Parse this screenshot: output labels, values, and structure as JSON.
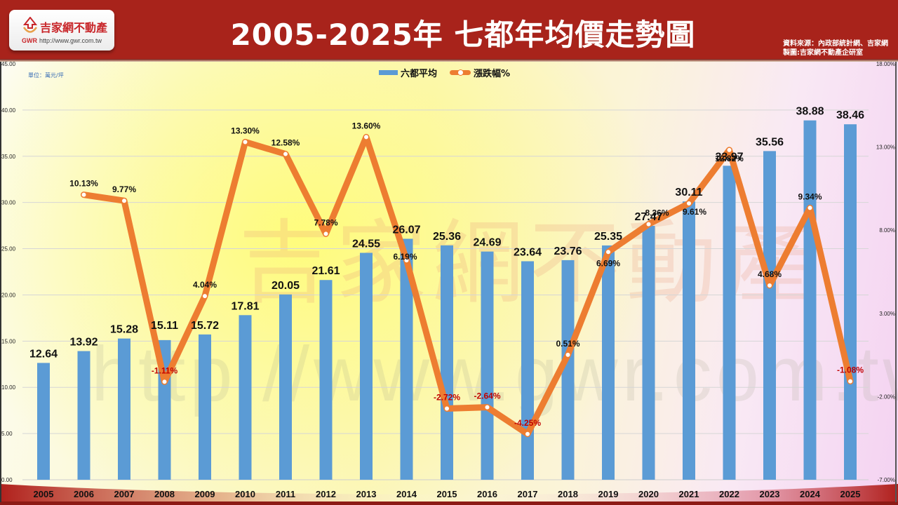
{
  "header": {
    "title": "2005-2025年 七都年均價走勢圖",
    "logo": {
      "name": "吉家網不動產",
      "abbr": "GWR",
      "url": "http://www.gwr.com.tw"
    },
    "source_line1": "資料來源：內政部統計網、吉家網",
    "source_line2": "製圖:吉家網不動產企研室"
  },
  "watermark": {
    "name": "吉家網不動產",
    "url": "http://www.gwr.com.tw"
  },
  "colors": {
    "header": "#a8231b",
    "bar": "#5b9bd5",
    "line": "#ed7d31",
    "negative": "#c00000"
  },
  "chart_data": {
    "type": "bar+line",
    "title": "2005-2025年 七都年均價走勢圖",
    "unit_label": "單位：萬元/坪",
    "categories": [
      "2005",
      "2006",
      "2007",
      "2008",
      "2009",
      "2010",
      "2011",
      "2012",
      "2013",
      "2014",
      "2015",
      "2016",
      "2017",
      "2018",
      "2019",
      "2020",
      "2021",
      "2022",
      "2023",
      "2024",
      "2025"
    ],
    "series": [
      {
        "name": "六都平均",
        "type": "bar",
        "axis": "left",
        "values": [
          12.64,
          13.92,
          15.28,
          15.11,
          15.72,
          17.81,
          20.05,
          21.61,
          24.55,
          26.07,
          25.36,
          24.69,
          23.64,
          23.76,
          25.35,
          27.47,
          30.11,
          33.97,
          35.56,
          38.88,
          38.46
        ],
        "labels": [
          "12.64",
          "13.92",
          "15.28",
          "15.11",
          "15.72",
          "17.81",
          "20.05",
          "21.61",
          "24.55",
          "26.07",
          "25.36",
          "24.69",
          "23.64",
          "23.76",
          "25.35",
          "27.47",
          "30.11",
          "33.97",
          "35.56",
          "38.88",
          "38.46"
        ]
      },
      {
        "name": "漲跌幅%",
        "type": "line",
        "axis": "right",
        "values": [
          null,
          10.13,
          9.77,
          -1.11,
          4.04,
          13.3,
          12.58,
          7.78,
          13.6,
          6.19,
          -2.72,
          -2.64,
          -4.25,
          0.51,
          6.69,
          8.36,
          9.61,
          12.82,
          4.68,
          9.34,
          -1.08
        ],
        "labels": [
          "",
          "10.13%",
          "9.77%",
          "-1.11%",
          "4.04%",
          "13.30%",
          "12.58%",
          "7.78%",
          "13.60%",
          "6.19%",
          "-2.72%",
          "-2.64%",
          "-4.25%",
          "0.51%",
          "6.69%",
          "8.36%",
          "9.61%",
          "12.82%",
          "4.68%",
          "9.34%",
          "-1.08%"
        ]
      }
    ],
    "y_left": {
      "range": [
        0,
        45
      ],
      "ticks": [
        "0.00",
        "5.00",
        "10.00",
        "15.00",
        "20.00",
        "25.00",
        "30.00",
        "35.00",
        "40.00",
        "45.00"
      ],
      "tick_values": [
        0,
        5,
        10,
        15,
        20,
        25,
        30,
        35,
        40,
        45
      ]
    },
    "y_right": {
      "range": [
        -7,
        18
      ],
      "ticks": [
        "-7.00%",
        "-2.00%",
        "3.00%",
        "8.00%",
        "13.00%",
        "18.00%"
      ],
      "tick_values": [
        -7,
        -2,
        3,
        8,
        13,
        18
      ]
    },
    "grid": true,
    "legend": {
      "position": "top-center",
      "entries": [
        "六都平均",
        "漲跌幅%"
      ]
    }
  }
}
